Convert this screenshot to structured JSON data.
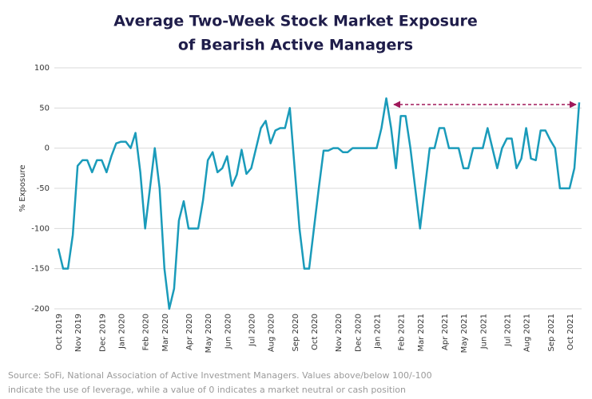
{
  "chart_data": {
    "type": "line",
    "title": [
      "Average Two-Week Stock Market Exposure",
      "of Bearish Active Managers"
    ],
    "y_label": "% Exposure",
    "source": [
      "Source: SoFi, National Association of Active Investment Managers. Values above/below 100/-100",
      "indicate the use of leverage, while a value of 0 indicates a market neutral or cash position"
    ],
    "color": "#1a9bba",
    "categories": [
      "Oct 2019",
      null,
      null,
      null,
      "Nov 2019",
      null,
      null,
      null,
      null,
      "Dec 2019",
      null,
      null,
      null,
      "Jan 2020",
      null,
      null,
      null,
      null,
      "Feb 2020",
      null,
      null,
      null,
      "Mar 2020",
      null,
      null,
      null,
      null,
      "Apr 2020",
      null,
      null,
      null,
      "May 2020",
      null,
      null,
      null,
      "Jun 2020",
      null,
      null,
      null,
      null,
      "Jul 2020",
      null,
      null,
      null,
      "Aug 2020",
      null,
      null,
      null,
      null,
      "Sep 2020",
      null,
      null,
      null,
      "Oct 2020",
      null,
      null,
      null,
      null,
      "Nov 2020",
      null,
      null,
      null,
      "Dec 2020",
      null,
      null,
      null,
      "Jan 2021",
      null,
      null,
      null,
      null,
      "Feb 2021",
      null,
      null,
      null,
      "Mar 2021",
      null,
      null,
      null,
      null,
      "Apr 2021",
      null,
      null,
      null,
      "May 2021",
      null,
      null,
      null,
      "Jun 2021",
      null,
      null,
      null,
      null,
      "Jul 2021",
      null,
      null,
      null,
      "Aug 2021",
      null,
      null,
      null,
      null,
      "Sep 2021",
      null,
      null,
      null,
      "Oct 2021",
      null,
      null
    ],
    "values": [
      -125,
      -150,
      -150,
      -108,
      -22,
      -15,
      -15,
      -30,
      -15,
      -15,
      -30,
      -10,
      6,
      8,
      8,
      0,
      19,
      -30,
      -100,
      -50,
      0,
      -50,
      -150,
      -200,
      -175,
      -90,
      -66,
      -100,
      -100,
      -100,
      -65,
      -15,
      -5,
      -30,
      -25,
      -10,
      -47,
      -33,
      -2,
      -32,
      -25,
      0,
      25,
      34,
      6,
      22,
      25,
      25,
      50,
      -25,
      -100,
      -150,
      -150,
      -100,
      -50,
      -3,
      -3,
      0,
      0,
      -5,
      -5,
      0,
      0,
      0,
      0,
      0,
      0,
      25,
      62,
      25,
      -25,
      40,
      40,
      0,
      -50,
      -100,
      -50,
      0,
      0,
      25,
      25,
      0,
      0,
      0,
      -25,
      -25,
      0,
      0,
      0,
      25,
      0,
      -25,
      0,
      12,
      12,
      -25,
      -13,
      25,
      -13,
      -15,
      22,
      22,
      10,
      0,
      -50,
      -50,
      -50,
      -25,
      57
    ],
    "ylim": [
      -200,
      100
    ],
    "yticks": [
      -200,
      -150,
      -100,
      -50,
      0,
      50,
      100
    ],
    "grid": true
  }
}
